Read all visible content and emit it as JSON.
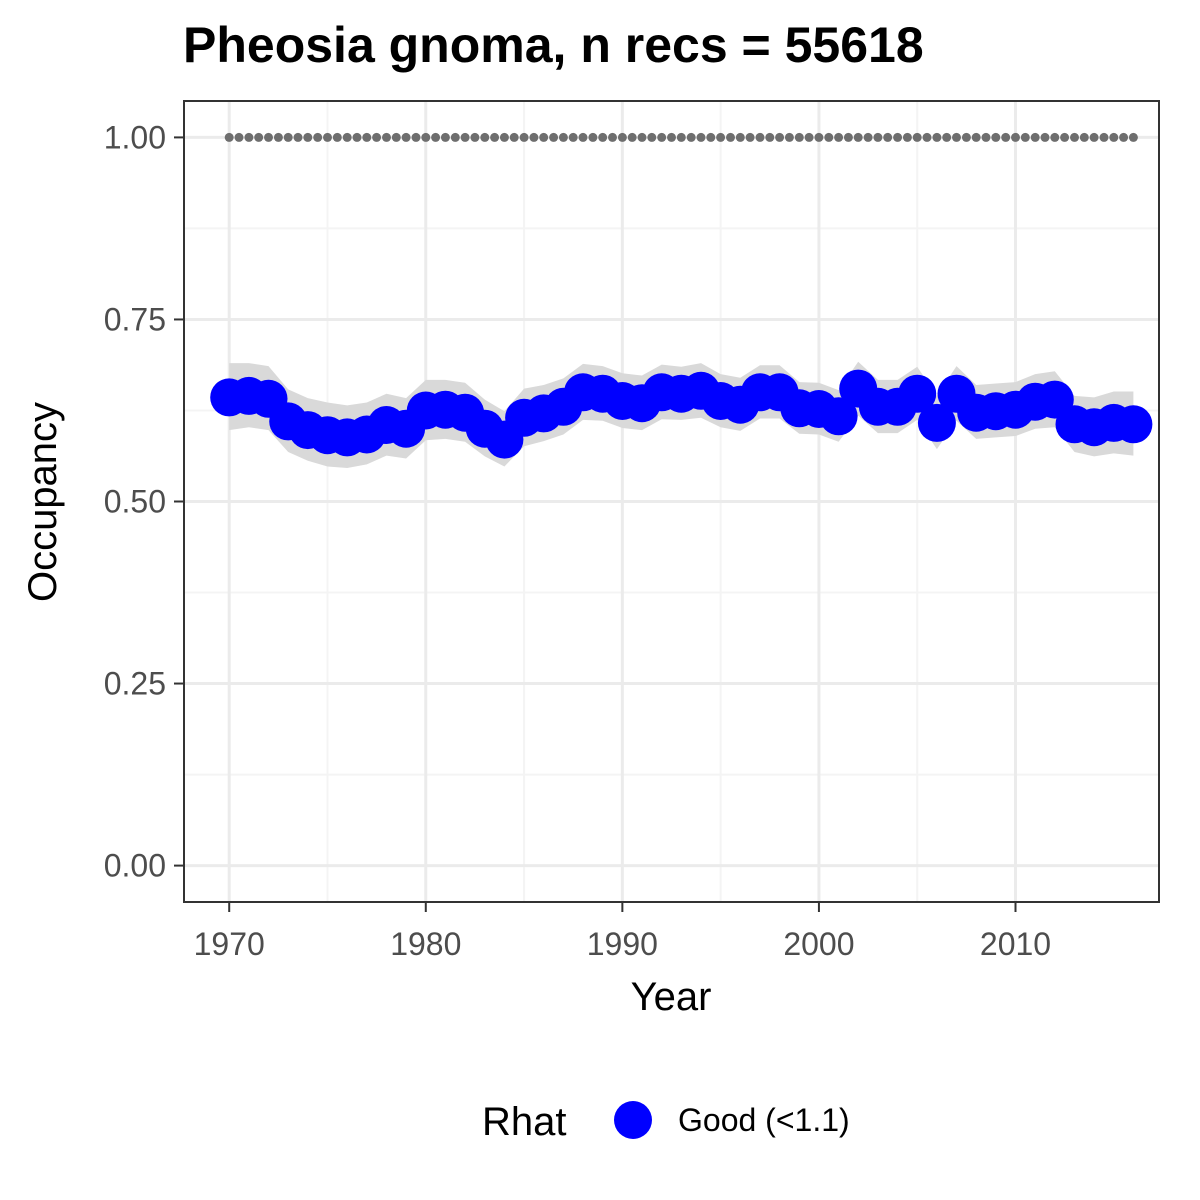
{
  "chart_data": {
    "type": "line",
    "title": "Pheosia gnoma, n recs = 55618",
    "xlabel": "Year",
    "ylabel": "Occupancy",
    "xlim": [
      1967.7,
      2017.3
    ],
    "ylim": [
      -0.05,
      1.05
    ],
    "x_ticks": [
      1970,
      1980,
      1990,
      2000,
      2010
    ],
    "x_tick_labels": [
      "1970",
      "1980",
      "1990",
      "2000",
      "2010"
    ],
    "y_ticks": [
      0,
      0.25,
      0.5,
      0.75,
      1.0
    ],
    "y_tick_labels": [
      "0.00",
      "0.25",
      "0.50",
      "0.75",
      "1.00"
    ],
    "grid": true,
    "legend_position": "bottom",
    "legend": {
      "title": "Rhat",
      "entries": [
        {
          "label": "Good (<1.1)",
          "color": "#0000ff"
        }
      ]
    },
    "series": [
      {
        "name": "Good (<1.1)",
        "color": "#0000ff",
        "x": [
          1970,
          1971,
          1972,
          1973,
          1974,
          1975,
          1976,
          1977,
          1978,
          1979,
          1980,
          1981,
          1982,
          1983,
          1984,
          1985,
          1986,
          1987,
          1988,
          1989,
          1990,
          1991,
          1992,
          1993,
          1994,
          1995,
          1996,
          1997,
          1998,
          1999,
          2000,
          2001,
          2002,
          2003,
          2004,
          2005,
          2006,
          2007,
          2008,
          2009,
          2010,
          2011,
          2012,
          2013,
          2014,
          2015,
          2016
        ],
        "y": [
          0.643,
          0.645,
          0.641,
          0.61,
          0.598,
          0.591,
          0.588,
          0.592,
          0.605,
          0.6,
          0.625,
          0.626,
          0.622,
          0.6,
          0.585,
          0.615,
          0.621,
          0.63,
          0.65,
          0.648,
          0.638,
          0.635,
          0.65,
          0.648,
          0.652,
          0.638,
          0.633,
          0.65,
          0.65,
          0.628,
          0.627,
          0.617,
          0.655,
          0.63,
          0.63,
          0.648,
          0.608,
          0.648,
          0.622,
          0.624,
          0.626,
          0.637,
          0.64,
          0.606,
          0.602,
          0.608,
          0.606
        ],
        "ci_lower": [
          0.598,
          0.602,
          0.598,
          0.568,
          0.556,
          0.548,
          0.546,
          0.551,
          0.563,
          0.559,
          0.584,
          0.586,
          0.582,
          0.562,
          0.548,
          0.576,
          0.583,
          0.592,
          0.612,
          0.611,
          0.601,
          0.598,
          0.613,
          0.612,
          0.615,
          0.602,
          0.597,
          0.614,
          0.614,
          0.593,
          0.592,
          0.582,
          0.618,
          0.594,
          0.594,
          0.612,
          0.572,
          0.611,
          0.586,
          0.588,
          0.59,
          0.6,
          0.602,
          0.568,
          0.562,
          0.566,
          0.563
        ],
        "ci_upper": [
          0.69,
          0.69,
          0.686,
          0.654,
          0.642,
          0.636,
          0.632,
          0.636,
          0.648,
          0.642,
          0.667,
          0.667,
          0.663,
          0.64,
          0.624,
          0.655,
          0.66,
          0.669,
          0.689,
          0.686,
          0.676,
          0.673,
          0.688,
          0.685,
          0.69,
          0.675,
          0.67,
          0.687,
          0.687,
          0.664,
          0.663,
          0.653,
          0.692,
          0.667,
          0.667,
          0.685,
          0.645,
          0.686,
          0.66,
          0.662,
          0.664,
          0.675,
          0.679,
          0.645,
          0.643,
          0.651,
          0.651
        ]
      },
      {
        "name": "",
        "style": "dotted",
        "color": "#6e6e6e",
        "x": [
          1970,
          2016
        ],
        "y": [
          1.0,
          1.0
        ]
      }
    ]
  },
  "colors": {
    "points": "#0000ff",
    "ribbon": "#d9d9d9",
    "dotted_line": "#6e6e6e",
    "grid_major": "#ebebeb",
    "grid_minor": "#f4f4f4",
    "panel_border": "#333333",
    "tick_label": "#4d4d4d"
  }
}
